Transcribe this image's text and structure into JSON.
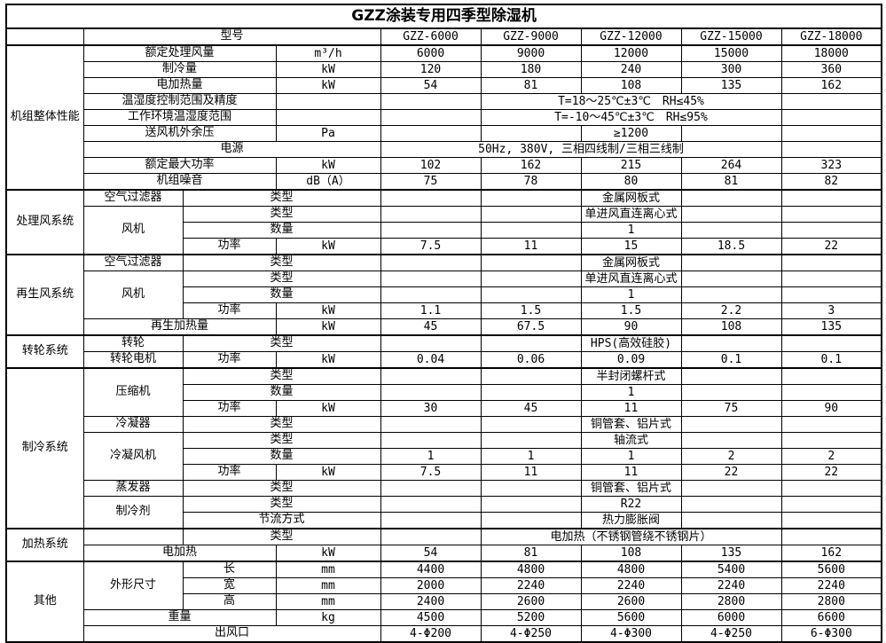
{
  "title": "GZZ涂装专用四季型除湿机",
  "models": [
    "GZZ-6000",
    "GZZ-9000",
    "GZZ-12000",
    "GZZ-15000",
    "GZZ-18000"
  ],
  "rows": [
    {
      "cells": [
        [
          "",
          1,
          1,
          "e"
        ],
        [
          "型号",
          3,
          1,
          "p"
        ],
        [
          "GZZ-6000",
          1,
          1,
          "m"
        ],
        [
          "GZZ-9000",
          1,
          1,
          "m"
        ],
        [
          "GZZ-12000",
          1,
          1,
          "m"
        ],
        [
          "GZZ-15000",
          1,
          1,
          "m"
        ],
        [
          "GZZ-18000",
          1,
          1,
          "m"
        ]
      ]
    },
    {
      "sec": true,
      "cells": [
        [
          "机组整体性能",
          1,
          9,
          "s"
        ],
        [
          "额定处理风量",
          2,
          1,
          "p"
        ],
        [
          "m³/h",
          1,
          1,
          "u"
        ],
        [
          "6000"
        ],
        [
          "9000"
        ],
        [
          "12000"
        ],
        [
          "15000"
        ],
        [
          "18000"
        ]
      ]
    },
    {
      "cells": [
        [
          "制冷量",
          2,
          1,
          "p"
        ],
        [
          "kW",
          1,
          1,
          "u"
        ],
        [
          "120"
        ],
        [
          "180"
        ],
        [
          "240"
        ],
        [
          "300"
        ],
        [
          "360"
        ]
      ]
    },
    {
      "cells": [
        [
          "电加热量",
          2,
          1,
          "p"
        ],
        [
          "kW",
          1,
          1,
          "u"
        ],
        [
          "54"
        ],
        [
          "81"
        ],
        [
          "108"
        ],
        [
          "135"
        ],
        [
          "162"
        ]
      ]
    },
    {
      "cells": [
        [
          "温湿度控制范围及精度",
          2,
          1,
          "p"
        ],
        [
          ""
        ],
        [
          ""
        ],
        [
          "T=18～25℃±3℃　RH≤45%",
          3,
          1
        ],
        [
          ""
        ]
      ]
    },
    {
      "cells": [
        [
          "工作环境温湿度范围",
          2,
          1,
          "p"
        ],
        [
          ""
        ],
        [
          ""
        ],
        [
          "T=-10～45℃±3℃　RH≤95%",
          3,
          1
        ],
        [
          ""
        ]
      ]
    },
    {
      "cells": [
        [
          "送风机外余压",
          2,
          1,
          "p"
        ],
        [
          "Pa",
          1,
          1,
          "u"
        ],
        [
          ""
        ],
        [
          ""
        ],
        [
          "≥1200"
        ],
        [
          ""
        ],
        [
          ""
        ]
      ]
    },
    {
      "cells": [
        [
          "电源",
          3,
          1,
          "p"
        ],
        [
          "50Hz, 380V, 三相四线制/三相三线制",
          4,
          1
        ],
        [
          ""
        ]
      ]
    },
    {
      "cells": [
        [
          "额定最大功率",
          2,
          1,
          "p"
        ],
        [
          "kW",
          1,
          1,
          "u"
        ],
        [
          "102"
        ],
        [
          "162"
        ],
        [
          "215"
        ],
        [
          "264"
        ],
        [
          "323"
        ]
      ]
    },
    {
      "cells": [
        [
          "机组噪音",
          2,
          1,
          "p"
        ],
        [
          "dB（A）",
          1,
          1,
          "u"
        ],
        [
          "75"
        ],
        [
          "78"
        ],
        [
          "80"
        ],
        [
          "81"
        ],
        [
          "82"
        ]
      ]
    },
    {
      "sec": true,
      "cells": [
        [
          "处理风系统",
          1,
          4,
          "s"
        ],
        [
          "空气过滤器",
          1,
          1,
          "g"
        ],
        [
          "类型",
          2,
          1,
          "p"
        ],
        [
          ""
        ],
        [
          ""
        ],
        [
          "金属网板式"
        ],
        [
          ""
        ],
        [
          ""
        ]
      ]
    },
    {
      "cells": [
        [
          "风机",
          1,
          3,
          "g"
        ],
        [
          "类型",
          2,
          1,
          "p"
        ],
        [
          ""
        ],
        [
          ""
        ],
        [
          "单进风直连离心式"
        ],
        [
          ""
        ],
        [
          ""
        ]
      ]
    },
    {
      "cells": [
        [
          "数量",
          2,
          1,
          "p"
        ],
        [
          ""
        ],
        [
          ""
        ],
        [
          "1"
        ],
        [
          ""
        ],
        [
          ""
        ]
      ]
    },
    {
      "cells": [
        [
          "功率",
          1,
          1,
          "p"
        ],
        [
          "kW",
          1,
          1,
          "u"
        ],
        [
          "7.5"
        ],
        [
          "11"
        ],
        [
          "15"
        ],
        [
          "18.5"
        ],
        [
          "22"
        ]
      ]
    },
    {
      "sec": true,
      "cells": [
        [
          "再生风系统",
          1,
          5,
          "s"
        ],
        [
          "空气过滤器",
          1,
          1,
          "g"
        ],
        [
          "类型",
          2,
          1,
          "p"
        ],
        [
          ""
        ],
        [
          ""
        ],
        [
          "金属网板式"
        ],
        [
          ""
        ],
        [
          ""
        ]
      ]
    },
    {
      "cells": [
        [
          "风机",
          1,
          3,
          "g"
        ],
        [
          "类型",
          2,
          1,
          "p"
        ],
        [
          ""
        ],
        [
          ""
        ],
        [
          "单进风直连离心式"
        ],
        [
          ""
        ],
        [
          ""
        ]
      ]
    },
    {
      "cells": [
        [
          "数量",
          2,
          1,
          "p"
        ],
        [
          ""
        ],
        [
          ""
        ],
        [
          "1"
        ],
        [
          ""
        ],
        [
          ""
        ]
      ]
    },
    {
      "cells": [
        [
          "功率",
          1,
          1,
          "p"
        ],
        [
          "kW",
          1,
          1,
          "u"
        ],
        [
          "1.1"
        ],
        [
          "1.5"
        ],
        [
          "1.5"
        ],
        [
          "2.2"
        ],
        [
          "3"
        ]
      ]
    },
    {
      "cells": [
        [
          "再生加热量",
          2,
          1,
          "p"
        ],
        [
          "kW",
          1,
          1,
          "u"
        ],
        [
          "45"
        ],
        [
          "67.5"
        ],
        [
          "90"
        ],
        [
          "108"
        ],
        [
          "135"
        ]
      ]
    },
    {
      "sec": true,
      "cells": [
        [
          "转轮系统",
          1,
          2,
          "s"
        ],
        [
          "转轮",
          1,
          1,
          "g"
        ],
        [
          "类型",
          2,
          1,
          "p"
        ],
        [
          ""
        ],
        [
          ""
        ],
        [
          "HPS(高效硅胶)"
        ],
        [
          ""
        ],
        [
          ""
        ]
      ]
    },
    {
      "cells": [
        [
          "转轮电机",
          1,
          1,
          "g"
        ],
        [
          "功率",
          1,
          1,
          "p"
        ],
        [
          "kW",
          1,
          1,
          "u"
        ],
        [
          "0.04"
        ],
        [
          "0.06"
        ],
        [
          "0.09"
        ],
        [
          "0.1"
        ],
        [
          "0.1"
        ]
      ]
    },
    {
      "sec": true,
      "cells": [
        [
          "制冷系统",
          1,
          10,
          "s"
        ],
        [
          "压缩机",
          1,
          3,
          "g"
        ],
        [
          "类型",
          2,
          1,
          "p"
        ],
        [
          ""
        ],
        [
          ""
        ],
        [
          "半封闭螺杆式"
        ],
        [
          ""
        ],
        [
          ""
        ]
      ]
    },
    {
      "cells": [
        [
          "数量",
          2,
          1,
          "p"
        ],
        [
          ""
        ],
        [
          ""
        ],
        [
          "1"
        ],
        [
          ""
        ],
        [
          ""
        ]
      ]
    },
    {
      "cells": [
        [
          "功率",
          1,
          1,
          "p"
        ],
        [
          "kW",
          1,
          1,
          "u"
        ],
        [
          "30"
        ],
        [
          "45"
        ],
        [
          "11"
        ],
        [
          "75"
        ],
        [
          "90"
        ]
      ]
    },
    {
      "cells": [
        [
          "冷凝器",
          1,
          1,
          "g"
        ],
        [
          "类型",
          2,
          1,
          "p"
        ],
        [
          ""
        ],
        [
          ""
        ],
        [
          "铜管套、铝片式"
        ],
        [
          ""
        ],
        [
          ""
        ]
      ]
    },
    {
      "cells": [
        [
          "冷凝风机",
          1,
          3,
          "g"
        ],
        [
          "类型",
          2,
          1,
          "p"
        ],
        [
          ""
        ],
        [
          ""
        ],
        [
          "轴流式"
        ],
        [
          ""
        ],
        [
          ""
        ]
      ]
    },
    {
      "cells": [
        [
          "数量",
          2,
          1,
          "p"
        ],
        [
          "1"
        ],
        [
          "1"
        ],
        [
          "1"
        ],
        [
          "2"
        ],
        [
          "2"
        ]
      ]
    },
    {
      "cells": [
        [
          "功率",
          1,
          1,
          "p"
        ],
        [
          "kW",
          1,
          1,
          "u"
        ],
        [
          "7.5"
        ],
        [
          "11"
        ],
        [
          "11"
        ],
        [
          "22"
        ],
        [
          "22"
        ]
      ]
    },
    {
      "cells": [
        [
          "蒸发器",
          1,
          1,
          "g"
        ],
        [
          "类型",
          2,
          1,
          "p"
        ],
        [
          ""
        ],
        [
          ""
        ],
        [
          "铜管套、铝片式"
        ],
        [
          ""
        ],
        [
          ""
        ]
      ]
    },
    {
      "cells": [
        [
          "制冷剂",
          1,
          2,
          "g"
        ],
        [
          "类型",
          2,
          1,
          "p"
        ],
        [
          ""
        ],
        [
          ""
        ],
        [
          "R22"
        ],
        [
          ""
        ],
        [
          ""
        ]
      ]
    },
    {
      "cells": [
        [
          "节流方式",
          2,
          1,
          "p"
        ],
        [
          ""
        ],
        [
          ""
        ],
        [
          "热力膨胀阀"
        ],
        [
          ""
        ],
        [
          ""
        ]
      ]
    },
    {
      "sec": true,
      "cells": [
        [
          "加热系统",
          1,
          2,
          "s"
        ],
        [
          "",
          1,
          1,
          "e"
        ],
        [
          "类型",
          2,
          1,
          "p"
        ],
        [
          ""
        ],
        [
          "电加热（不锈钢管绕不锈钢片）",
          3,
          1
        ],
        [
          ""
        ]
      ]
    },
    {
      "cells": [
        [
          "电加热",
          2,
          1,
          "p"
        ],
        [
          "kW",
          1,
          1,
          "u"
        ],
        [
          "54"
        ],
        [
          "81"
        ],
        [
          "108"
        ],
        [
          "135"
        ],
        [
          "162"
        ]
      ]
    },
    {
      "sec": true,
      "cells": [
        [
          "其他",
          1,
          5,
          "s"
        ],
        [
          "外形尺寸",
          1,
          3,
          "g"
        ],
        [
          "长",
          1,
          1,
          "p"
        ],
        [
          "mm",
          1,
          1,
          "u"
        ],
        [
          "4400"
        ],
        [
          "4800"
        ],
        [
          "4800"
        ],
        [
          "5400"
        ],
        [
          "5600"
        ]
      ]
    },
    {
      "cells": [
        [
          "宽",
          1,
          1,
          "p"
        ],
        [
          "mm",
          1,
          1,
          "u"
        ],
        [
          "2000"
        ],
        [
          "2240"
        ],
        [
          "2240"
        ],
        [
          "2240"
        ],
        [
          "2240"
        ]
      ]
    },
    {
      "cells": [
        [
          "高",
          1,
          1,
          "p"
        ],
        [
          "mm",
          1,
          1,
          "u"
        ],
        [
          "2400"
        ],
        [
          "2600"
        ],
        [
          "2600"
        ],
        [
          "2800"
        ],
        [
          "2800"
        ]
      ]
    },
    {
      "cells": [
        [
          "重量",
          2,
          1,
          "p"
        ],
        [
          "kg",
          1,
          1,
          "u"
        ],
        [
          "4500"
        ],
        [
          "5200"
        ],
        [
          "5600"
        ],
        [
          "6000"
        ],
        [
          "6600"
        ]
      ]
    },
    {
      "cells": [
        [
          "出风口",
          3,
          1,
          "p"
        ],
        [
          "4-Φ200"
        ],
        [
          "4-Φ250"
        ],
        [
          "4-Φ300"
        ],
        [
          "4-Φ250"
        ],
        [
          "6-Φ300"
        ]
      ]
    }
  ]
}
